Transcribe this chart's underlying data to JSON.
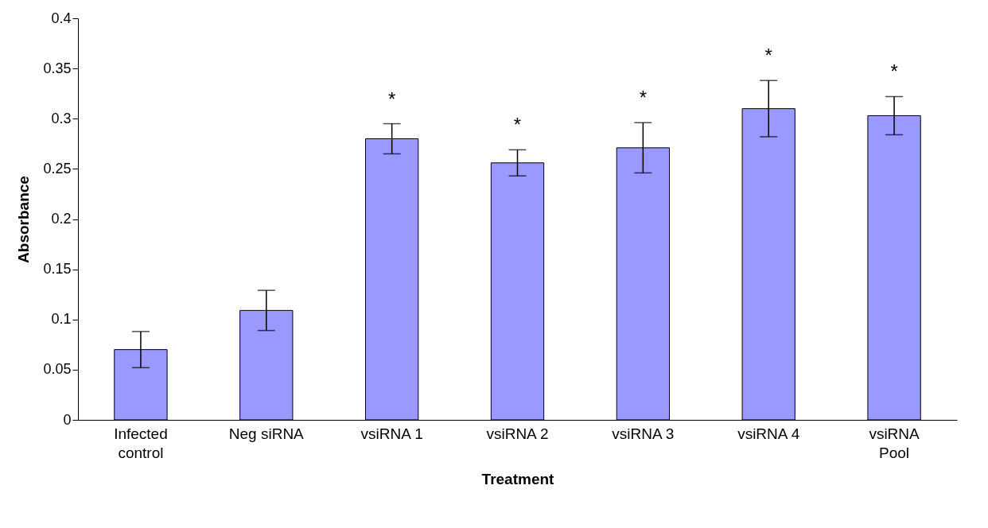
{
  "chart_data": {
    "type": "bar",
    "xlabel": "Treatment",
    "ylabel": "Absorbance",
    "categories": [
      "Infected\ncontrol",
      "Neg siRNA",
      "vsiRNA 1",
      "vsiRNA 2",
      "vsiRNA 3",
      "vsiRNA 4",
      "vsiRNA\nPool"
    ],
    "values": [
      0.07,
      0.109,
      0.28,
      0.256,
      0.271,
      0.31,
      0.303
    ],
    "errors": [
      0.018,
      0.02,
      0.015,
      0.013,
      0.025,
      0.028,
      0.019
    ],
    "color": "#9999ff",
    "ylim": [
      0,
      0.4
    ],
    "yticks": [
      0,
      0.05,
      0.1,
      0.15,
      0.2,
      0.25,
      0.3,
      0.35,
      0.4
    ],
    "grid": false,
    "value_labels": [
      null,
      null,
      "*",
      "*",
      "*",
      "*",
      "*"
    ]
  }
}
